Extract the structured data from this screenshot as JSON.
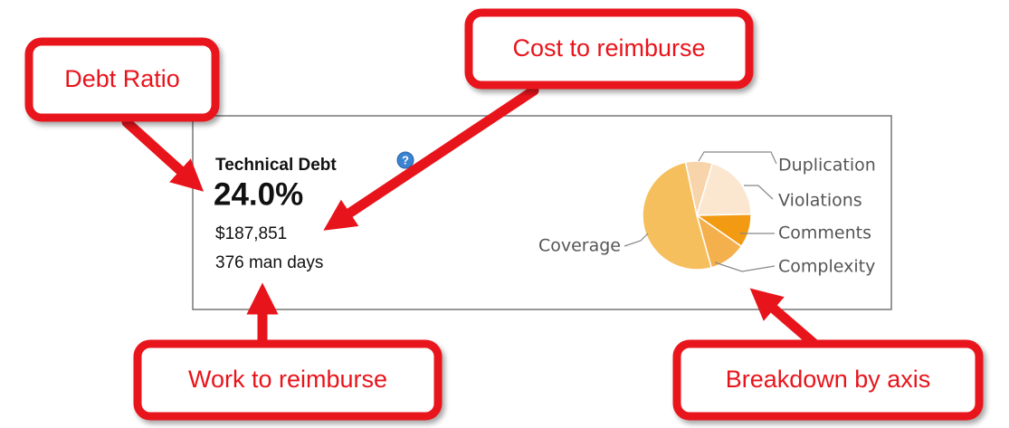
{
  "widget": {
    "title": "Technical Debt",
    "ratio": "24.0%",
    "cost": "$187,851",
    "work": "376 man days"
  },
  "chart_data": {
    "type": "pie",
    "title": "Breakdown by axis",
    "categories": [
      "Duplication",
      "Violations",
      "Comments",
      "Complexity",
      "Coverage"
    ],
    "values": [
      8,
      20,
      10,
      11,
      51
    ],
    "colors": [
      "#f8d4ab",
      "#fbe6cf",
      "#f29a12",
      "#f4b04c",
      "#f6bf5e"
    ]
  },
  "annotations": {
    "debt_ratio": "Debt Ratio",
    "cost": "Cost to reimburse",
    "work": "Work to reimburse"
  }
}
